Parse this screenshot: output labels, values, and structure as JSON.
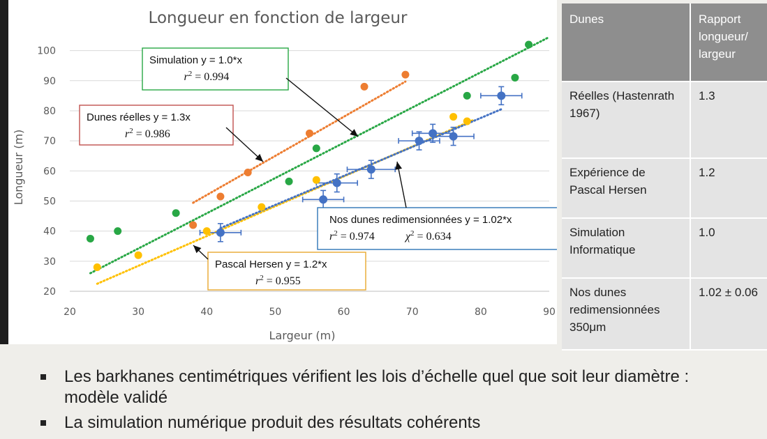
{
  "chart_data": {
    "type": "scatter",
    "title": "Longueur en fonction de largeur",
    "xlabel": "Largeur (m)",
    "ylabel": "Longueur (m)",
    "xlim": [
      20,
      90
    ],
    "ylim": [
      20,
      105
    ],
    "xticks": [
      20,
      30,
      40,
      50,
      60,
      70,
      80,
      90
    ],
    "yticks": [
      20,
      30,
      40,
      50,
      60,
      70,
      80,
      90,
      100
    ],
    "grid": "horizontal",
    "series": [
      {
        "color": "#ed7d31",
        "points": [
          [
            38,
            42
          ],
          [
            42,
            51.5
          ],
          [
            46,
            59.5
          ],
          [
            55,
            72.5
          ],
          [
            63,
            88
          ],
          [
            69,
            92
          ]
        ],
        "trendline": {
          "x": [
            38,
            69
          ],
          "y": [
            49.4,
            89.7
          ]
        }
      },
      {
        "color": "#28a745",
        "points": [
          [
            23,
            37.5
          ],
          [
            27,
            40
          ],
          [
            35.5,
            46
          ],
          [
            52,
            56.5
          ],
          [
            56,
            67.5
          ],
          [
            78,
            85
          ],
          [
            85,
            91
          ],
          [
            87,
            102
          ]
        ],
        "trendline": {
          "x": [
            23,
            90
          ],
          "y": [
            26,
            104.5
          ]
        }
      },
      {
        "color": "#ffc000",
        "points": [
          [
            24,
            28
          ],
          [
            30,
            32
          ],
          [
            40,
            40
          ],
          [
            48,
            48
          ],
          [
            56,
            57
          ],
          [
            76,
            78
          ],
          [
            78,
            76.5
          ]
        ],
        "trendline": {
          "x": [
            24,
            79
          ],
          "y": [
            22.5,
            77
          ]
        }
      },
      {
        "color": "#4472c4",
        "points": [
          [
            42,
            39.5
          ],
          [
            57,
            50.5
          ],
          [
            59,
            56
          ],
          [
            64,
            60.5
          ],
          [
            71,
            70
          ],
          [
            73,
            72.5
          ],
          [
            76,
            71.5
          ],
          [
            83,
            85
          ]
        ],
        "xerr": [
          3,
          3,
          3,
          3.5,
          3,
          3,
          3,
          3
        ],
        "yerr": [
          3,
          3,
          3,
          3,
          3,
          3,
          3,
          3
        ],
        "trendline": {
          "x": [
            42,
            83
          ],
          "y": [
            41,
            80.5
          ]
        }
      }
    ],
    "annotations": [
      {
        "text": "Simulation y = 1.0*x",
        "math": "0.994",
        "color": "#28a745"
      },
      {
        "text": "Dunes réelles y = 1.3x",
        "math": "0.986",
        "color": "#c0504d"
      },
      {
        "text": "Nos dunes redimensionnées y = 1.02*x",
        "math": "0.974",
        "chi": "0.634",
        "color": "#2e75b6"
      },
      {
        "text": "Pascal Hersen  y = 1.2*x",
        "math": "0.955",
        "color": "#e8a72e"
      }
    ]
  },
  "table": {
    "headers": [
      "Dunes",
      "Rapport longueur/ largeur"
    ],
    "rows": [
      {
        "label": "Réelles (Hastenrath 1967)",
        "value": "1.3"
      },
      {
        "label": "Expérience de Pascal Hersen",
        "value": "1.2"
      },
      {
        "label": "Simulation Informatique",
        "value": "1.0"
      },
      {
        "label": "Nos dunes redimensionnées 350μm",
        "value": "1.02 ± 0.06"
      }
    ]
  },
  "bullets": [
    "Les barkhanes centimétriques vérifient les lois d’échelle quel que soit leur diamètre : modèle validé",
    "La simulation numérique produit des résultats cohérents"
  ]
}
